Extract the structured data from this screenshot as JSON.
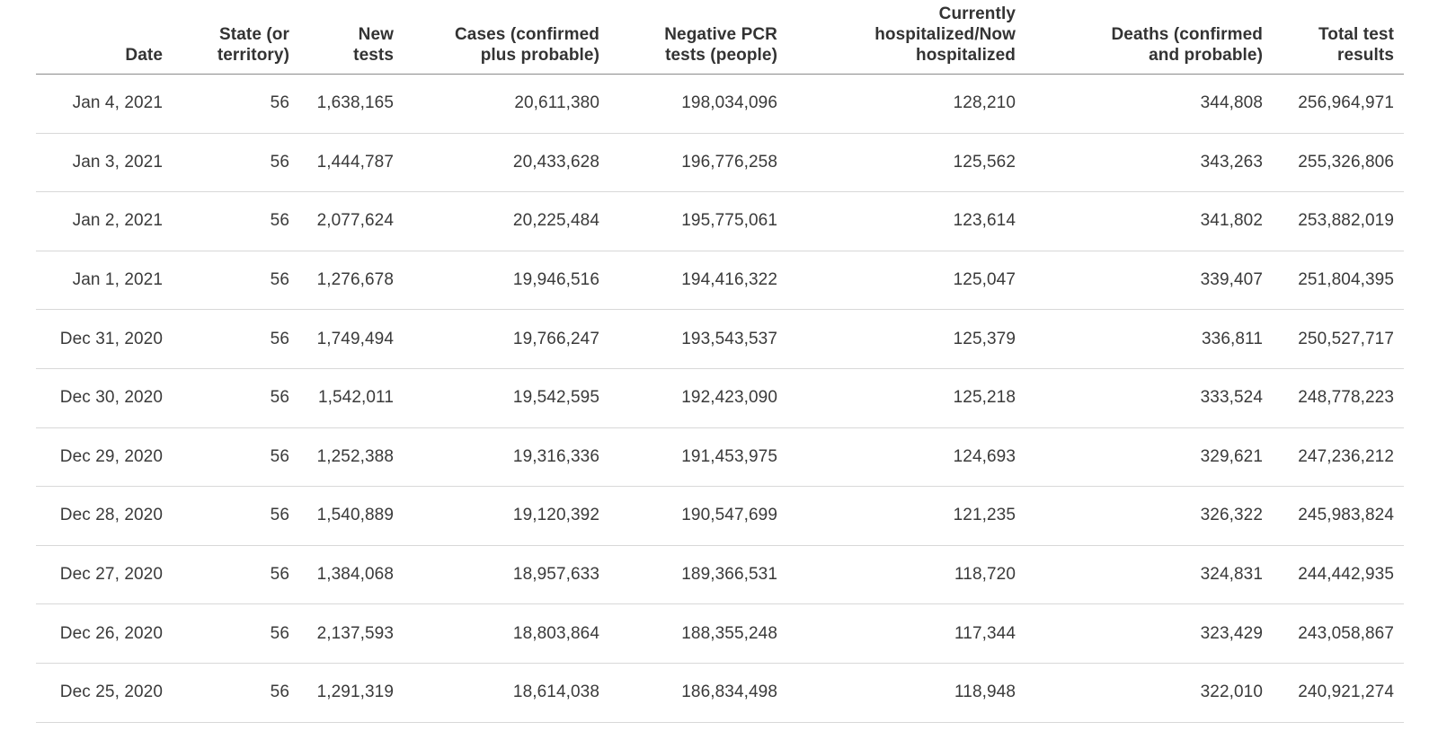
{
  "page": {
    "background_color": "#ffffff",
    "text_color": "#3a3a3a",
    "header_rule_color": "#8b8b8b",
    "row_rule_color": "#d8d8d8"
  },
  "chart_data": {
    "type": "table",
    "columns": [
      {
        "label": "Date"
      },
      {
        "label": "State (or\nterritory)"
      },
      {
        "label": "New\ntests"
      },
      {
        "label": "Cases (confirmed\nplus probable)"
      },
      {
        "label": "Negative PCR\ntests (people)"
      },
      {
        "label": "Currently\nhospitalized/Now\nhospitalized"
      },
      {
        "label": "Deaths (confirmed\nand probable)"
      },
      {
        "label": "Total test\nresults"
      }
    ],
    "rows": [
      [
        "Jan 4, 2021",
        "56",
        "1,638,165",
        "20,611,380",
        "198,034,096",
        "128,210",
        "344,808",
        "256,964,971"
      ],
      [
        "Jan 3, 2021",
        "56",
        "1,444,787",
        "20,433,628",
        "196,776,258",
        "125,562",
        "343,263",
        "255,326,806"
      ],
      [
        "Jan 2, 2021",
        "56",
        "2,077,624",
        "20,225,484",
        "195,775,061",
        "123,614",
        "341,802",
        "253,882,019"
      ],
      [
        "Jan 1, 2021",
        "56",
        "1,276,678",
        "19,946,516",
        "194,416,322",
        "125,047",
        "339,407",
        "251,804,395"
      ],
      [
        "Dec 31, 2020",
        "56",
        "1,749,494",
        "19,766,247",
        "193,543,537",
        "125,379",
        "336,811",
        "250,527,717"
      ],
      [
        "Dec 30, 2020",
        "56",
        "1,542,011",
        "19,542,595",
        "192,423,090",
        "125,218",
        "333,524",
        "248,778,223"
      ],
      [
        "Dec 29, 2020",
        "56",
        "1,252,388",
        "19,316,336",
        "191,453,975",
        "124,693",
        "329,621",
        "247,236,212"
      ],
      [
        "Dec 28, 2020",
        "56",
        "1,540,889",
        "19,120,392",
        "190,547,699",
        "121,235",
        "326,322",
        "245,983,824"
      ],
      [
        "Dec 27, 2020",
        "56",
        "1,384,068",
        "18,957,633",
        "189,366,531",
        "118,720",
        "324,831",
        "244,442,935"
      ],
      [
        "Dec 26, 2020",
        "56",
        "2,137,593",
        "18,803,864",
        "188,355,248",
        "117,344",
        "323,429",
        "243,058,867"
      ],
      [
        "Dec 25, 2020",
        "56",
        "1,291,319",
        "18,614,038",
        "186,834,498",
        "118,948",
        "322,010",
        "240,921,274"
      ]
    ]
  }
}
